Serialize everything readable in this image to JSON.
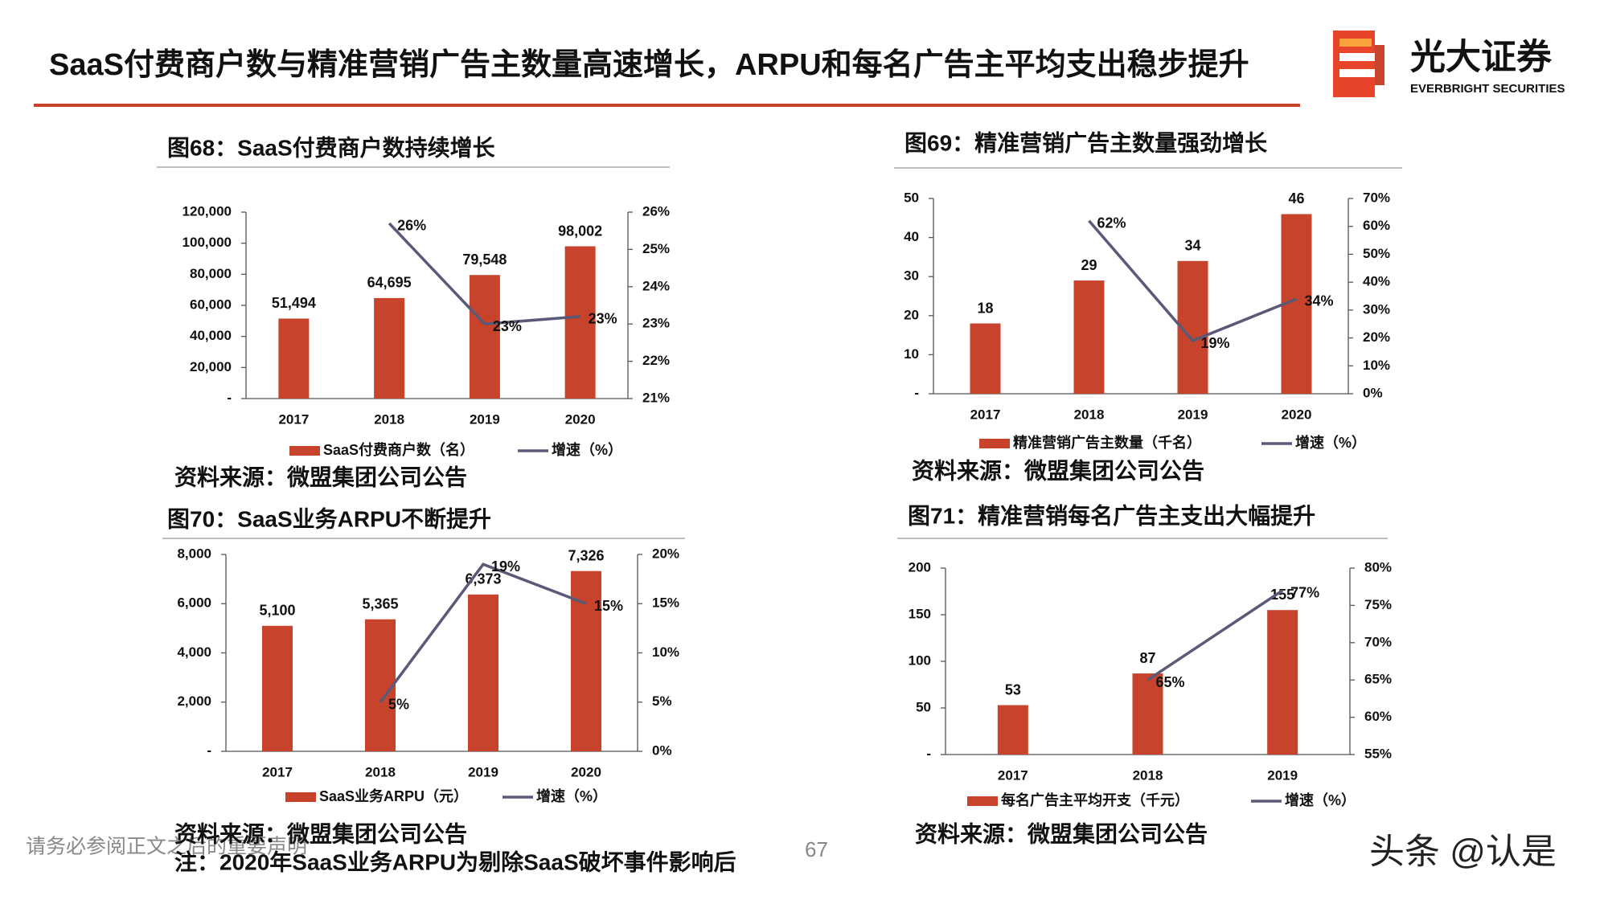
{
  "header": {
    "title": "SaaS付费商户数与精准营销广告主数量高速增长，ARPU和每名广告主平均支出稳步提升",
    "logo_cn": "光大证券",
    "logo_en": "EVERBRIGHT SECURITIES"
  },
  "footer": {
    "disclaimer": "请务必参阅正文之后的重要声明",
    "page": "67",
    "watermark": "头条 @认是"
  },
  "chart_data": [
    {
      "type": "bar",
      "title": "图68：SaaS付费商户数持续增长",
      "source": "资料来源：微盟集团公司公告",
      "categories": [
        "2017",
        "2018",
        "2019",
        "2020"
      ],
      "series": [
        {
          "name": "SaaS付费商户数（名）",
          "color": "#c8432b",
          "values": [
            51494,
            64695,
            79548,
            98002
          ],
          "value_labels": [
            "51,494",
            "64,695",
            "79,548",
            "98,002"
          ]
        },
        {
          "name": "增速（%）",
          "color": "#5a5a78",
          "type": "line",
          "axis": "y2",
          "values": [
            null,
            25.7,
            23,
            23.2
          ],
          "value_labels": [
            null,
            "26%",
            "23%",
            "23%"
          ]
        }
      ],
      "ylim": [
        0,
        120000
      ],
      "yticks": [
        {
          "value": 0,
          "label": "-"
        },
        {
          "value": 20000,
          "label": "20,000"
        },
        {
          "value": 40000,
          "label": "40,000"
        },
        {
          "value": 60000,
          "label": "60,000"
        },
        {
          "value": 80000,
          "label": "80,000"
        },
        {
          "value": 100000,
          "label": "100,000"
        },
        {
          "value": 120000,
          "label": "120,000"
        }
      ],
      "y2lim": [
        21,
        26
      ],
      "y2ticks": [
        {
          "value": 21,
          "label": "21%"
        },
        {
          "value": 22,
          "label": "22%"
        },
        {
          "value": 23,
          "label": "23%"
        },
        {
          "value": 24,
          "label": "24%"
        },
        {
          "value": 25,
          "label": "25%"
        },
        {
          "value": 26,
          "label": "26%"
        }
      ]
    },
    {
      "type": "bar",
      "title": "图69：精准营销广告主数量强劲增长",
      "source": "资料来源：微盟集团公司公告",
      "categories": [
        "2017",
        "2018",
        "2019",
        "2020"
      ],
      "series": [
        {
          "name": "精准营销广告主数量（千名）",
          "color": "#c8432b",
          "values": [
            18,
            29,
            34,
            46
          ]
        },
        {
          "name": "增速（%）",
          "color": "#5a5a78",
          "type": "line",
          "axis": "y2",
          "values": [
            null,
            62,
            19,
            34
          ],
          "value_labels": [
            null,
            "62%",
            "19%",
            "34%"
          ]
        }
      ],
      "ylim": [
        0,
        50
      ],
      "yticks": [
        {
          "value": 0,
          "label": "-"
        },
        10,
        20,
        30,
        40,
        50
      ],
      "y2lim": [
        0,
        70
      ],
      "y2ticks": [
        {
          "value": 0,
          "label": "0%"
        },
        {
          "value": 10,
          "label": "10%"
        },
        {
          "value": 20,
          "label": "20%"
        },
        {
          "value": 30,
          "label": "30%"
        },
        {
          "value": 40,
          "label": "40%"
        },
        {
          "value": 50,
          "label": "50%"
        },
        {
          "value": 60,
          "label": "60%"
        },
        {
          "value": 70,
          "label": "70%"
        }
      ]
    },
    {
      "type": "bar",
      "title": "图70：SaaS业务ARPU不断提升",
      "source": "资料来源：微盟集团公司公告",
      "note": "注：2020年SaaS业务ARPU为剔除SaaS破坏事件影响后",
      "categories": [
        "2017",
        "2018",
        "2019",
        "2020"
      ],
      "series": [
        {
          "name": "SaaS业务ARPU（元）",
          "color": "#c8432b",
          "values": [
            5100,
            5365,
            6373,
            7326
          ],
          "value_labels": [
            "5,100",
            "5,365",
            "6,373",
            "7,326"
          ]
        },
        {
          "name": "增速（%）",
          "color": "#5a5a78",
          "type": "line",
          "axis": "y2",
          "values": [
            null,
            5,
            19,
            15
          ],
          "value_labels": [
            null,
            "5%",
            "19%",
            "15%"
          ]
        }
      ],
      "ylim": [
        0,
        8000
      ],
      "yticks": [
        {
          "value": 0,
          "label": "-"
        },
        {
          "value": 2000,
          "label": "2,000"
        },
        {
          "value": 4000,
          "label": "4,000"
        },
        {
          "value": 6000,
          "label": "6,000"
        },
        {
          "value": 8000,
          "label": "8,000"
        }
      ],
      "y2lim": [
        0,
        20
      ],
      "y2ticks": [
        {
          "value": 0,
          "label": "0%"
        },
        {
          "value": 5,
          "label": "5%"
        },
        {
          "value": 10,
          "label": "10%"
        },
        {
          "value": 15,
          "label": "15%"
        },
        {
          "value": 20,
          "label": "20%"
        }
      ]
    },
    {
      "type": "bar",
      "title": "图71：精准营销每名广告主支出大幅提升",
      "source": "资料来源：微盟集团公司公告",
      "categories": [
        "2017",
        "2018",
        "2019"
      ],
      "series": [
        {
          "name": "每名广告主平均开支（千元）",
          "color": "#c8432b",
          "values": [
            53,
            87,
            155
          ]
        },
        {
          "name": "增速（%）",
          "color": "#5a5a78",
          "type": "line",
          "axis": "y2",
          "values": [
            null,
            65,
            77
          ],
          "value_labels": [
            null,
            "65%",
            "77%"
          ]
        }
      ],
      "ylim": [
        0,
        200
      ],
      "yticks": [
        {
          "value": 0,
          "label": "-"
        },
        50,
        100,
        150,
        200
      ],
      "y2lim": [
        55,
        80
      ],
      "y2ticks": [
        {
          "value": 55,
          "label": "55%"
        },
        {
          "value": 60,
          "label": "60%"
        },
        {
          "value": 65,
          "label": "65%"
        },
        {
          "value": 70,
          "label": "70%"
        },
        {
          "value": 75,
          "label": "75%"
        },
        {
          "value": 80,
          "label": "80%"
        }
      ]
    }
  ]
}
